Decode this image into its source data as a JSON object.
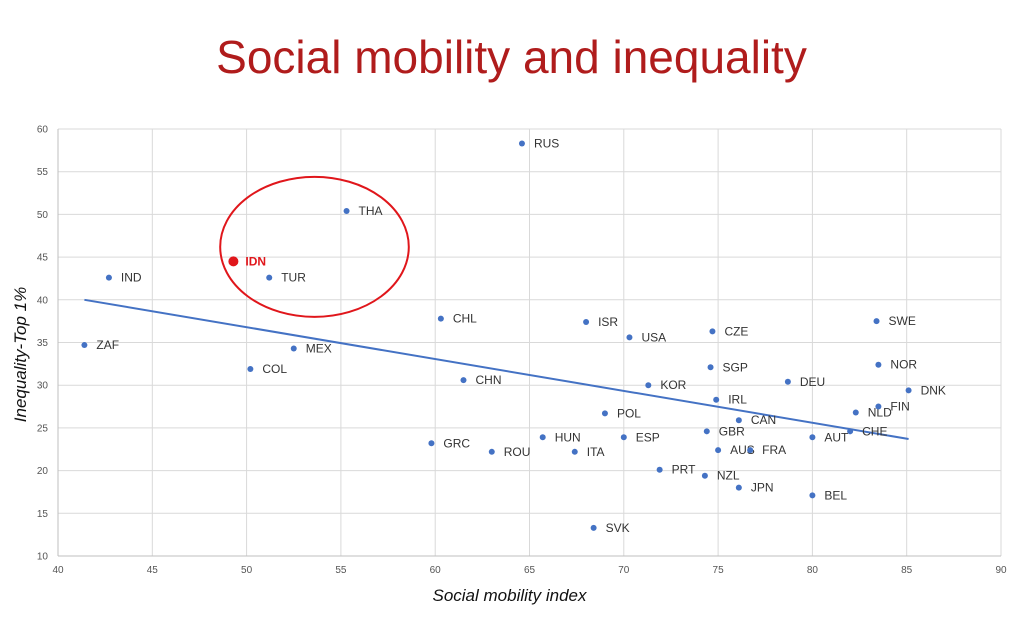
{
  "chart_data": {
    "type": "scatter",
    "title": "Social mobility and inequality",
    "xlabel": "Social mobility index",
    "ylabel": "Inequality-Top 1%",
    "xlim": [
      40,
      90
    ],
    "ylim": [
      10,
      60
    ],
    "xticks": [
      40,
      45,
      50,
      55,
      60,
      65,
      70,
      75,
      80,
      85,
      90
    ],
    "yticks": [
      10,
      15,
      20,
      25,
      30,
      35,
      40,
      45,
      50,
      55,
      60
    ],
    "grid": true,
    "point_color": "#4472c4",
    "highlight_color": "#e0161b",
    "points": [
      {
        "label": "RUS",
        "x": 64.6,
        "y": 58.3
      },
      {
        "label": "THA",
        "x": 55.3,
        "y": 50.4
      },
      {
        "label": "IDN",
        "x": 49.3,
        "y": 44.5,
        "highlight": true
      },
      {
        "label": "IND",
        "x": 42.7,
        "y": 42.6
      },
      {
        "label": "TUR",
        "x": 51.2,
        "y": 42.6
      },
      {
        "label": "CHL",
        "x": 60.3,
        "y": 37.8
      },
      {
        "label": "ISR",
        "x": 68.0,
        "y": 37.4
      },
      {
        "label": "SWE",
        "x": 83.4,
        "y": 37.5
      },
      {
        "label": "CZE",
        "x": 74.7,
        "y": 36.3
      },
      {
        "label": "USA",
        "x": 70.3,
        "y": 35.6
      },
      {
        "label": "ZAF",
        "x": 41.4,
        "y": 34.7
      },
      {
        "label": "MEX",
        "x": 52.5,
        "y": 34.3
      },
      {
        "label": "COL",
        "x": 50.2,
        "y": 31.9
      },
      {
        "label": "SGP",
        "x": 74.6,
        "y": 32.1
      },
      {
        "label": "NOR",
        "x": 83.5,
        "y": 32.4
      },
      {
        "label": "CHN",
        "x": 61.5,
        "y": 30.6
      },
      {
        "label": "DEU",
        "x": 78.7,
        "y": 30.4
      },
      {
        "label": "KOR",
        "x": 71.3,
        "y": 30.0
      },
      {
        "label": "DNK",
        "x": 85.1,
        "y": 29.4
      },
      {
        "label": "IRL",
        "x": 74.9,
        "y": 28.3
      },
      {
        "label": "NLD",
        "x": 82.3,
        "y": 26.8
      },
      {
        "label": "FIN",
        "x": 83.5,
        "y": 27.5
      },
      {
        "label": "POL",
        "x": 69.0,
        "y": 26.7
      },
      {
        "label": "CAN",
        "x": 76.1,
        "y": 25.9
      },
      {
        "label": "GBR",
        "x": 74.4,
        "y": 24.6
      },
      {
        "label": "CHE",
        "x": 82.0,
        "y": 24.6
      },
      {
        "label": "AUT",
        "x": 80.0,
        "y": 23.9
      },
      {
        "label": "HUN",
        "x": 65.7,
        "y": 23.9
      },
      {
        "label": "ESP",
        "x": 70.0,
        "y": 23.9
      },
      {
        "label": "GRC",
        "x": 59.8,
        "y": 23.2
      },
      {
        "label": "AUS",
        "x": 75.0,
        "y": 22.4
      },
      {
        "label": "FRA",
        "x": 76.7,
        "y": 22.4
      },
      {
        "label": "ROU",
        "x": 63.0,
        "y": 22.2
      },
      {
        "label": "ITA",
        "x": 67.4,
        "y": 22.2
      },
      {
        "label": "PRT",
        "x": 71.9,
        "y": 20.1
      },
      {
        "label": "NZL",
        "x": 74.3,
        "y": 19.4
      },
      {
        "label": "JPN",
        "x": 76.1,
        "y": 18.0
      },
      {
        "label": "BEL",
        "x": 80.0,
        "y": 17.1
      },
      {
        "label": "SVK",
        "x": 68.4,
        "y": 13.3
      }
    ],
    "trendline": {
      "x": [
        41.4,
        85.1
      ],
      "y": [
        40.0,
        23.7
      ],
      "color": "#4472c4"
    },
    "annotation": {
      "type": "ellipse",
      "center_x": 53.6,
      "center_y": 46.2,
      "radius_x": 5.0,
      "radius_y": 8.2,
      "color": "#e0161b"
    }
  }
}
